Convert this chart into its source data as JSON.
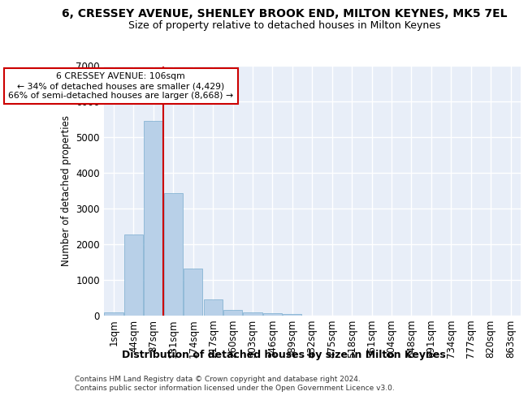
{
  "title1": "6, CRESSEY AVENUE, SHENLEY BROOK END, MILTON KEYNES, MK5 7EL",
  "title2": "Size of property relative to detached houses in Milton Keynes",
  "xlabel": "Distribution of detached houses by size in Milton Keynes",
  "ylabel": "Number of detached properties",
  "footer1": "Contains HM Land Registry data © Crown copyright and database right 2024.",
  "footer2": "Contains public sector information licensed under the Open Government Licence v3.0.",
  "bar_labels": [
    "1sqm",
    "44sqm",
    "87sqm",
    "131sqm",
    "174sqm",
    "217sqm",
    "260sqm",
    "303sqm",
    "346sqm",
    "389sqm",
    "432sqm",
    "475sqm",
    "518sqm",
    "561sqm",
    "604sqm",
    "648sqm",
    "691sqm",
    "734sqm",
    "777sqm",
    "820sqm",
    "863sqm"
  ],
  "bar_values": [
    80,
    2270,
    5470,
    3440,
    1310,
    460,
    155,
    100,
    65,
    40,
    0,
    0,
    0,
    0,
    0,
    0,
    0,
    0,
    0,
    0,
    0
  ],
  "bar_color": "#b8d0e8",
  "bar_edge_color": "#7aadcf",
  "bg_color": "#e8eef8",
  "grid_color": "#ffffff",
  "vline_color": "#cc0000",
  "ann_line1": "6 CRESSEY AVENUE: 106sqm",
  "ann_line2": "← 34% of detached houses are smaller (4,429)",
  "ann_line3": "66% of semi-detached houses are larger (8,668) →",
  "ann_box_fc": "white",
  "ann_box_ec": "#cc0000",
  "ylim": [
    0,
    7000
  ],
  "yticks": [
    0,
    1000,
    2000,
    3000,
    4000,
    5000,
    6000,
    7000
  ],
  "fig_bg": "#ffffff",
  "title1_fontsize": 10,
  "title2_fontsize": 9
}
